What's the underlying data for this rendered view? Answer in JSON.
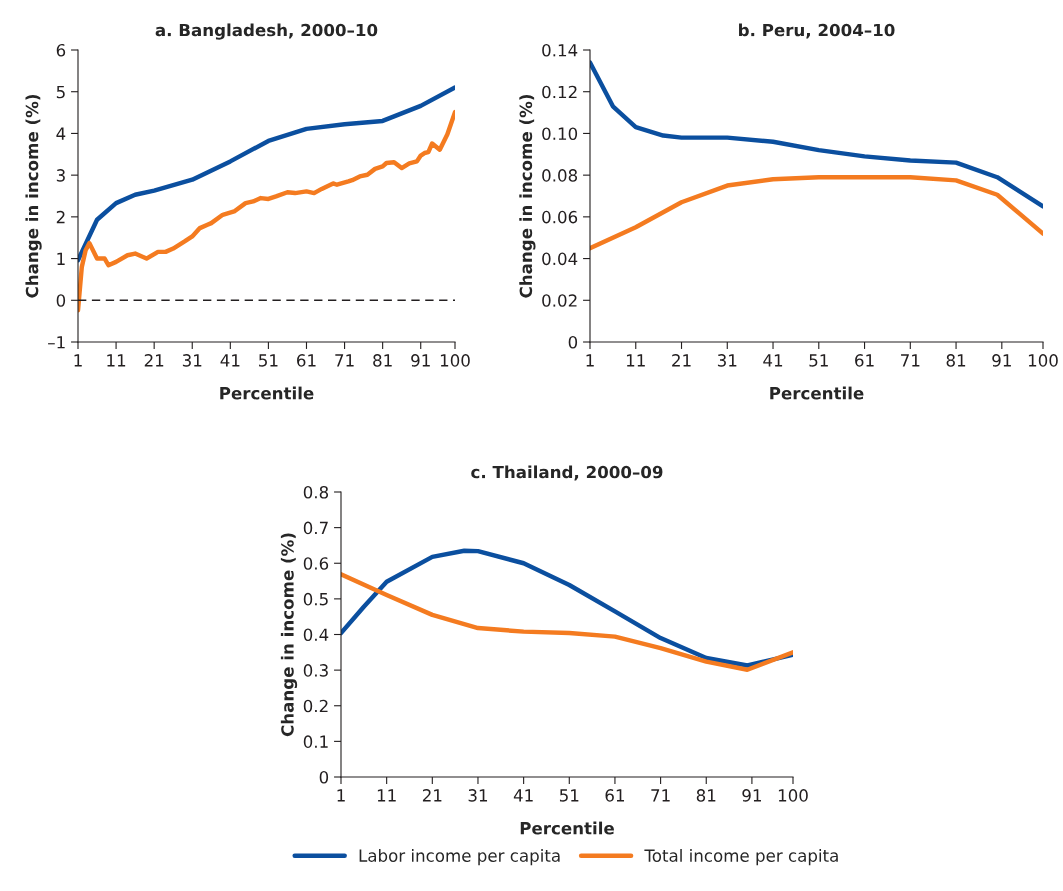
{
  "chart_data": [
    {
      "type": "line",
      "title": "a. Bangladesh, 2000–10",
      "xlabel": "Percentile",
      "ylabel": "Change in income (%)",
      "xlim": [
        1,
        100
      ],
      "xticks": [
        1,
        11,
        21,
        31,
        41,
        51,
        61,
        71,
        81,
        91,
        100
      ],
      "ylim": [
        -1,
        6
      ],
      "yticks": [
        {
          "value": -1,
          "label": "–1"
        },
        0,
        1,
        2,
        3,
        4,
        5,
        6
      ],
      "grid": false,
      "legend": false,
      "marker": "none",
      "line_style": "solid",
      "ref_lines": [
        {
          "axis": "y",
          "value": 0,
          "color": "#231f20",
          "line_style": "dashed"
        }
      ],
      "series": [
        {
          "color": "#0b4f9f",
          "x": [
            1,
            6,
            11,
            16,
            21,
            31,
            41,
            51,
            61,
            71,
            81,
            91,
            100
          ],
          "values": [
            0.96,
            1.93,
            2.33,
            2.53,
            2.63,
            2.89,
            3.33,
            3.82,
            4.11,
            4.22,
            4.3,
            4.66,
            5.1
          ]
        },
        {
          "color": "#f47b20",
          "x": [
            1,
            2,
            3,
            4,
            6,
            8,
            9,
            11,
            14,
            16,
            19,
            22,
            24,
            26,
            29,
            31,
            33,
            35,
            36,
            39,
            42,
            45,
            47,
            49,
            51,
            53,
            56,
            58,
            61,
            63,
            65,
            68,
            69,
            72,
            73,
            75,
            77,
            79,
            81,
            82,
            84,
            86,
            88,
            90,
            91,
            92,
            93,
            94,
            96,
            98,
            100
          ],
          "values": [
            -0.24,
            0.8,
            1.2,
            1.37,
            1.0,
            1.0,
            0.84,
            0.92,
            1.08,
            1.12,
            1.0,
            1.16,
            1.16,
            1.24,
            1.41,
            1.53,
            1.73,
            1.81,
            1.85,
            2.05,
            2.13,
            2.33,
            2.37,
            2.45,
            2.43,
            2.49,
            2.59,
            2.57,
            2.61,
            2.57,
            2.67,
            2.8,
            2.77,
            2.85,
            2.88,
            2.97,
            3.01,
            3.15,
            3.21,
            3.29,
            3.31,
            3.17,
            3.28,
            3.33,
            3.47,
            3.53,
            3.55,
            3.76,
            3.61,
            3.98,
            4.51
          ]
        }
      ]
    },
    {
      "type": "line",
      "title": "b. Peru, 2004–10",
      "xlabel": "Percentile",
      "ylabel": "Change in income (%)",
      "xlim": [
        1,
        100
      ],
      "xticks": [
        1,
        11,
        21,
        31,
        41,
        51,
        61,
        71,
        81,
        91,
        100
      ],
      "ylim": [
        0,
        0.14
      ],
      "yticks": [
        0,
        {
          "value": 0.02,
          "label": "0.02"
        },
        {
          "value": 0.04,
          "label": "0.04"
        },
        {
          "value": 0.06,
          "label": "0.06"
        },
        {
          "value": 0.08,
          "label": "0.08"
        },
        {
          "value": 0.1,
          "label": "0.10"
        },
        {
          "value": 0.12,
          "label": "0.12"
        },
        {
          "value": 0.14,
          "label": "0.14"
        }
      ],
      "grid": false,
      "legend": false,
      "marker": "none",
      "line_style": "solid",
      "series": [
        {
          "color": "#0b4f9f",
          "x": [
            1,
            6,
            11,
            17,
            21,
            31,
            41,
            51,
            61,
            71,
            81,
            90,
            100
          ],
          "values": [
            0.134,
            0.113,
            0.103,
            0.099,
            0.098,
            0.098,
            0.096,
            0.092,
            0.089,
            0.087,
            0.086,
            0.079,
            0.065
          ]
        },
        {
          "color": "#f47b20",
          "x": [
            1,
            11,
            21,
            31,
            41,
            51,
            61,
            71,
            81,
            90,
            100
          ],
          "values": [
            0.045,
            0.055,
            0.067,
            0.075,
            0.078,
            0.079,
            0.079,
            0.079,
            0.0775,
            0.0706,
            0.052
          ]
        }
      ]
    },
    {
      "type": "line",
      "title": "c. Thailand, 2000–09",
      "xlabel": "Percentile",
      "ylabel": "Change in income (%)",
      "xlim": [
        1,
        100
      ],
      "xticks": [
        1,
        11,
        21,
        31,
        41,
        51,
        61,
        71,
        81,
        91,
        100
      ],
      "ylim": [
        0,
        0.8
      ],
      "yticks": [
        0,
        0.1,
        0.2,
        0.3,
        0.4,
        0.5,
        0.6,
        0.7,
        0.8
      ],
      "grid": false,
      "legend": "bottom",
      "marker": "none",
      "line_style": "solid",
      "series": [
        {
          "name": "Labor income per capita",
          "color": "#0b4f9f",
          "x": [
            1,
            6,
            11,
            21,
            28,
            31,
            41,
            51,
            61,
            71,
            81,
            90,
            100
          ],
          "values": [
            0.404,
            0.478,
            0.548,
            0.618,
            0.635,
            0.634,
            0.6,
            0.539,
            0.465,
            0.39,
            0.334,
            0.313,
            0.343
          ]
        },
        {
          "name": "Total income per capita",
          "color": "#f47b20",
          "x": [
            1,
            11,
            21,
            31,
            41,
            51,
            61,
            71,
            81,
            90,
            100
          ],
          "values": [
            0.569,
            0.511,
            0.455,
            0.418,
            0.408,
            0.404,
            0.394,
            0.362,
            0.324,
            0.301,
            0.35
          ]
        }
      ]
    }
  ]
}
